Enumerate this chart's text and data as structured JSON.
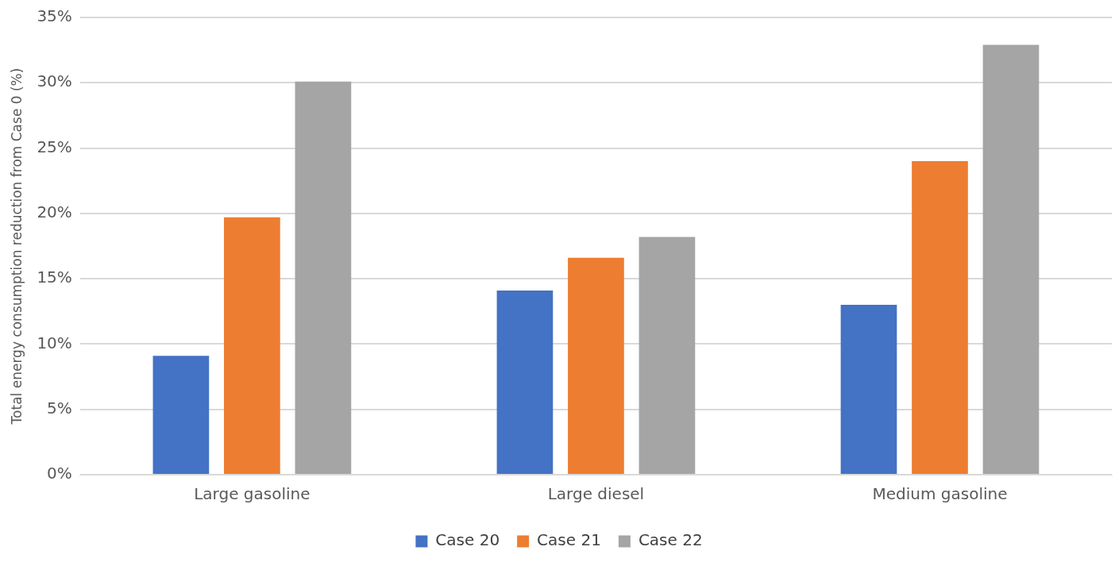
{
  "chart_data": {
    "type": "bar",
    "ylabel": "Total energy consumption reduction from Case 0 (%)",
    "categories": [
      "Large gasoline",
      "Large diesel",
      "Medium gasoline"
    ],
    "series": [
      {
        "name": "Case 20",
        "color": "#4472c4",
        "values": [
          9.1,
          14.1,
          13.0
        ]
      },
      {
        "name": "Case 21",
        "color": "#ed7d31",
        "values": [
          19.7,
          16.6,
          24.0
        ]
      },
      {
        "name": "Case 22",
        "color": "#a5a5a5",
        "values": [
          30.1,
          18.2,
          32.9
        ]
      }
    ],
    "ylim": [
      0,
      35
    ],
    "yticks": [
      {
        "value": 0,
        "label": "0%"
      },
      {
        "value": 5,
        "label": "5%"
      },
      {
        "value": 10,
        "label": "10%"
      },
      {
        "value": 15,
        "label": "15%"
      },
      {
        "value": 20,
        "label": "20%"
      },
      {
        "value": 25,
        "label": "25%"
      },
      {
        "value": 30,
        "label": "30%"
      },
      {
        "value": 35,
        "label": "35%"
      }
    ],
    "grid": "y",
    "legend": "bottom"
  }
}
